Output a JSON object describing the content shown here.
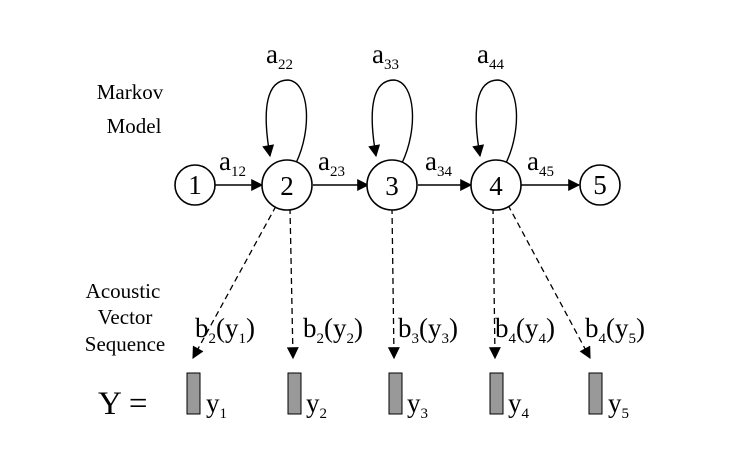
{
  "markov_label": [
    "Markov",
    "Model"
  ],
  "acoustic_label": [
    "Acoustic",
    "Vector",
    "Sequence"
  ],
  "states": [
    "1",
    "2",
    "3",
    "4",
    "5"
  ],
  "transitions": [
    {
      "base": "a",
      "sub": "12"
    },
    {
      "base": "a",
      "sub": "23"
    },
    {
      "base": "a",
      "sub": "34"
    },
    {
      "base": "a",
      "sub": "45"
    }
  ],
  "self_loops": [
    {
      "base": "a",
      "sub": "22"
    },
    {
      "base": "a",
      "sub": "33"
    },
    {
      "base": "a",
      "sub": "44"
    }
  ],
  "emissions": [
    {
      "base": "b",
      "sub": "2",
      "arg": "y",
      "argsub": "1"
    },
    {
      "base": "b",
      "sub": "2",
      "arg": "y",
      "argsub": "2"
    },
    {
      "base": "b",
      "sub": "3",
      "arg": "y",
      "argsub": "3"
    },
    {
      "base": "b",
      "sub": "4",
      "arg": "y",
      "argsub": "4"
    },
    {
      "base": "b",
      "sub": "4",
      "arg": "y",
      "argsub": "5"
    }
  ],
  "sequence_label": "Y =",
  "observations": [
    {
      "base": "y",
      "sub": "1"
    },
    {
      "base": "y",
      "sub": "2"
    },
    {
      "base": "y",
      "sub": "3"
    },
    {
      "base": "y",
      "sub": "4"
    },
    {
      "base": "y",
      "sub": "5"
    }
  ]
}
